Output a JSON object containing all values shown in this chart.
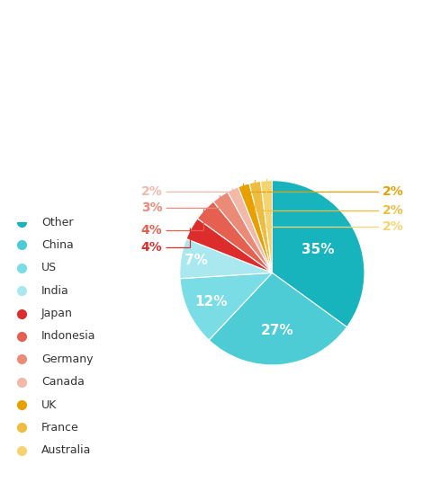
{
  "labels": [
    "Other",
    "China",
    "US",
    "India",
    "Japan",
    "Indonesia",
    "Germany",
    "Canada",
    "UK",
    "France",
    "Australia"
  ],
  "values": [
    35,
    27,
    12,
    7,
    4,
    4,
    3,
    2,
    2,
    2,
    2
  ],
  "colors": [
    "#18B4BE",
    "#4DCCD6",
    "#7ADCE4",
    "#A8E8EE",
    "#DC2C2C",
    "#E56050",
    "#EC8A78",
    "#F2B8A8",
    "#E8A000",
    "#F0BC40",
    "#F5D470"
  ],
  "large_label_texts": [
    "35%",
    "27%",
    "12%",
    "7%"
  ],
  "left_callout_labels": [
    "2%",
    "3%",
    "4%",
    "4%"
  ],
  "left_callout_colors": [
    "#F2B8A8",
    "#EC8A78",
    "#E56050",
    "#DC2C2C"
  ],
  "right_callout_labels": [
    "2%",
    "2%",
    "2%"
  ],
  "right_callout_colors": [
    "#E8A000",
    "#F0BC40",
    "#F5D470"
  ],
  "legend_labels": [
    "Other",
    "China",
    "US",
    "India",
    "Japan",
    "Indonesia",
    "Germany",
    "Canada",
    "UK",
    "France",
    "Australia"
  ],
  "bg_color": "#FFFFFF"
}
